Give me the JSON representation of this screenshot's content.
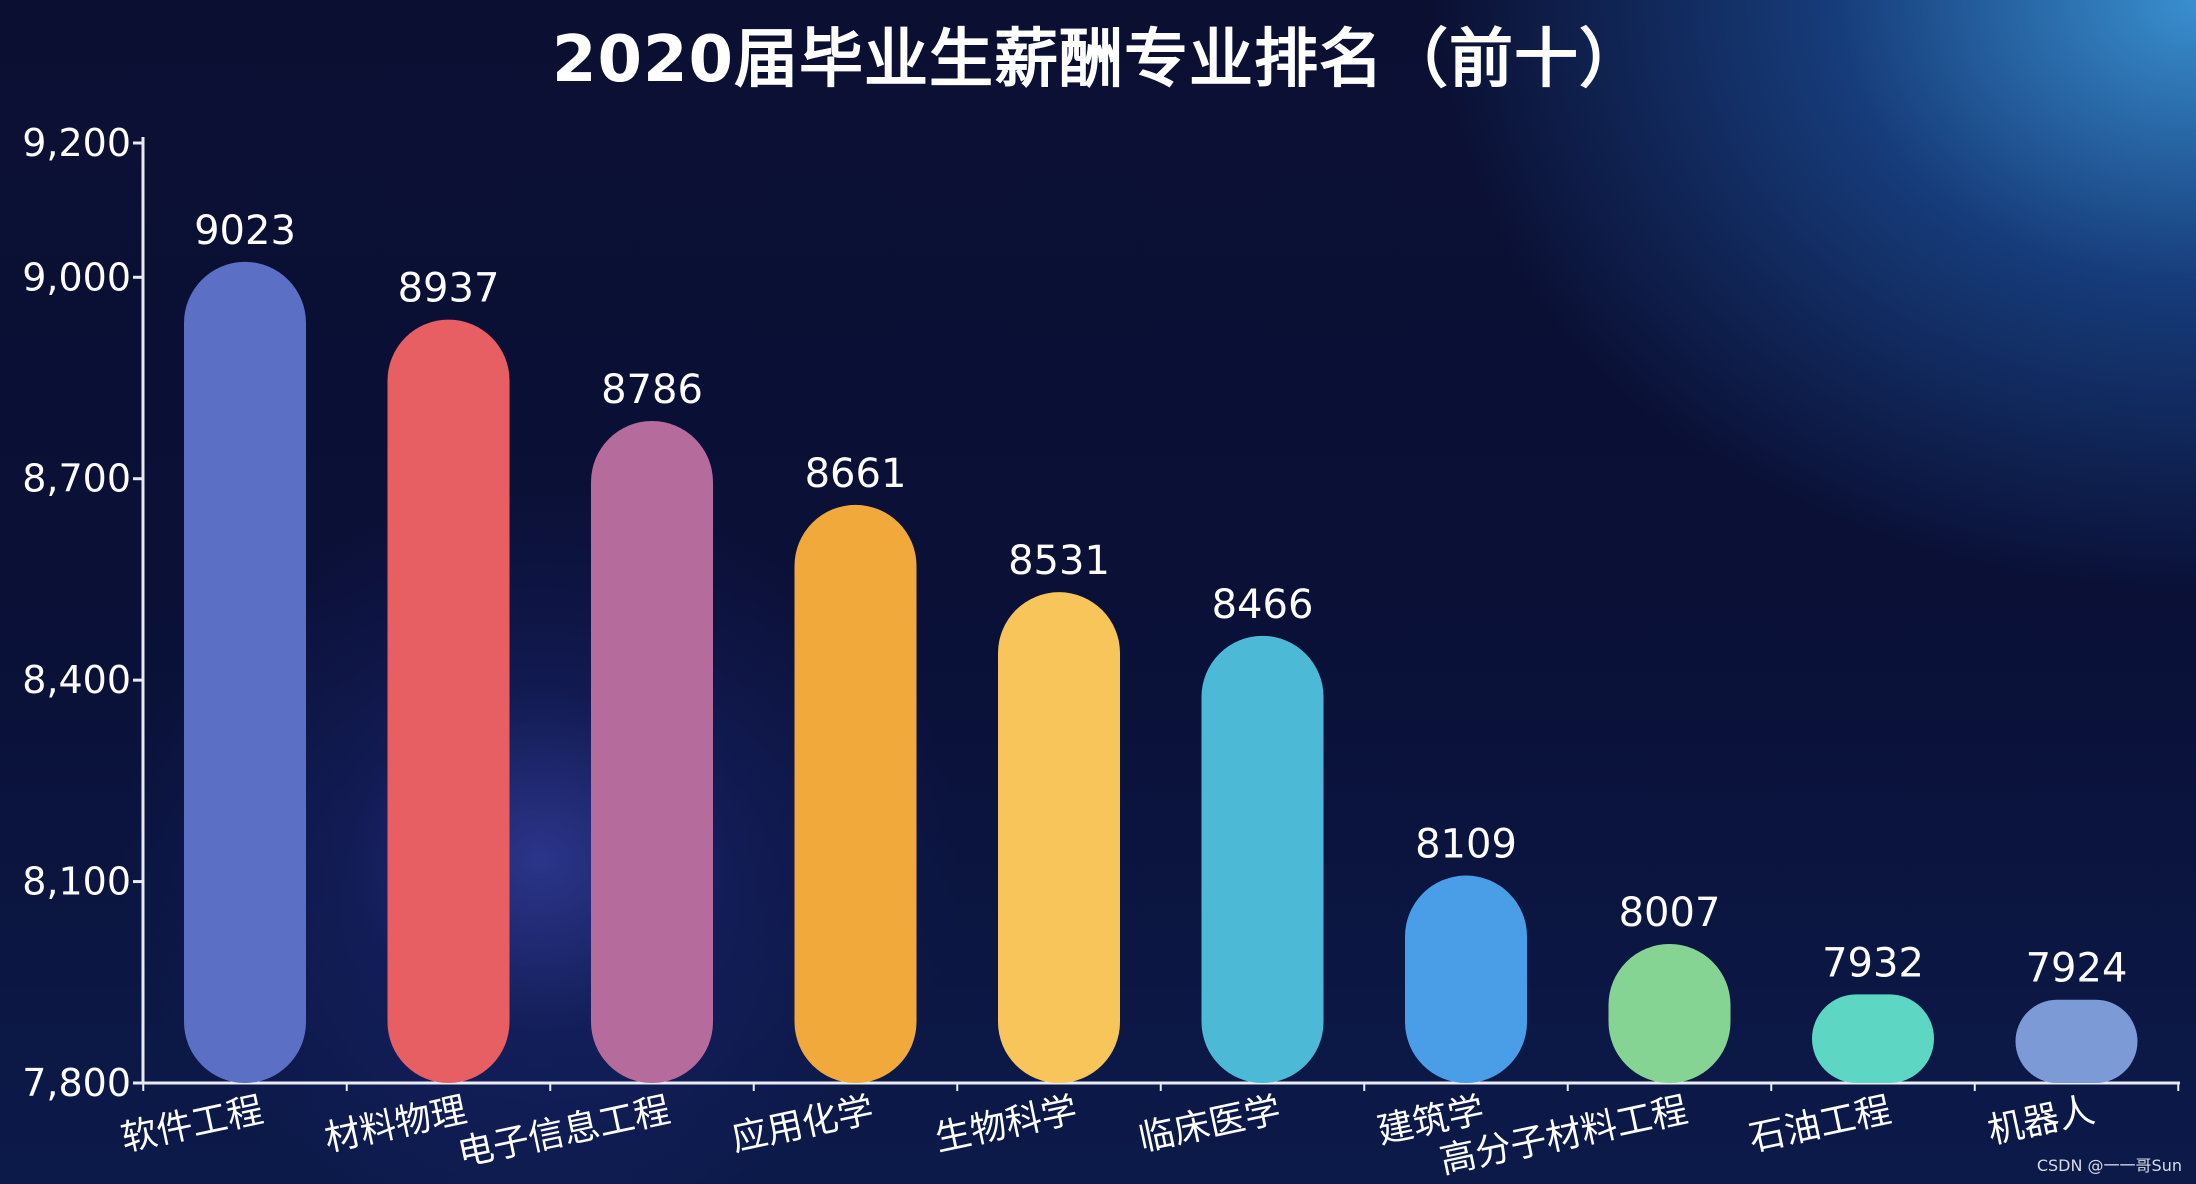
{
  "chart_data": {
    "type": "bar",
    "title": "2020届毕业生薪酬专业排名（前十）",
    "xlabel": "",
    "ylabel": "",
    "categories": [
      "软件工程",
      "材料物理",
      "电子信息工程",
      "应用化学",
      "生物科学",
      "临床医学",
      "建筑学",
      "高分子材料工程",
      "石油工程",
      "机器人"
    ],
    "values": [
      9023,
      8937,
      8786,
      8661,
      8531,
      8466,
      8109,
      8007,
      7932,
      7924
    ],
    "colors": [
      "#5b6fc4",
      "#e85f63",
      "#b56b9c",
      "#f2a93b",
      "#f7c55a",
      "#4cbad6",
      "#4a9ee8",
      "#86d493",
      "#5dd6c4",
      "#7b9ad6"
    ],
    "ylim": [
      7800,
      9200
    ],
    "yticks": [
      7800,
      8100,
      8400,
      8700,
      9000,
      9200
    ],
    "ytick_labels": [
      "7,800",
      "8,100",
      "8,400",
      "8,700",
      "9,000",
      "9,200"
    ],
    "grid": false,
    "legend": "none"
  },
  "watermark": "CSDN @一一哥Sun",
  "colors": {
    "axis": "#e8ebf5",
    "label": "#ffffff"
  }
}
